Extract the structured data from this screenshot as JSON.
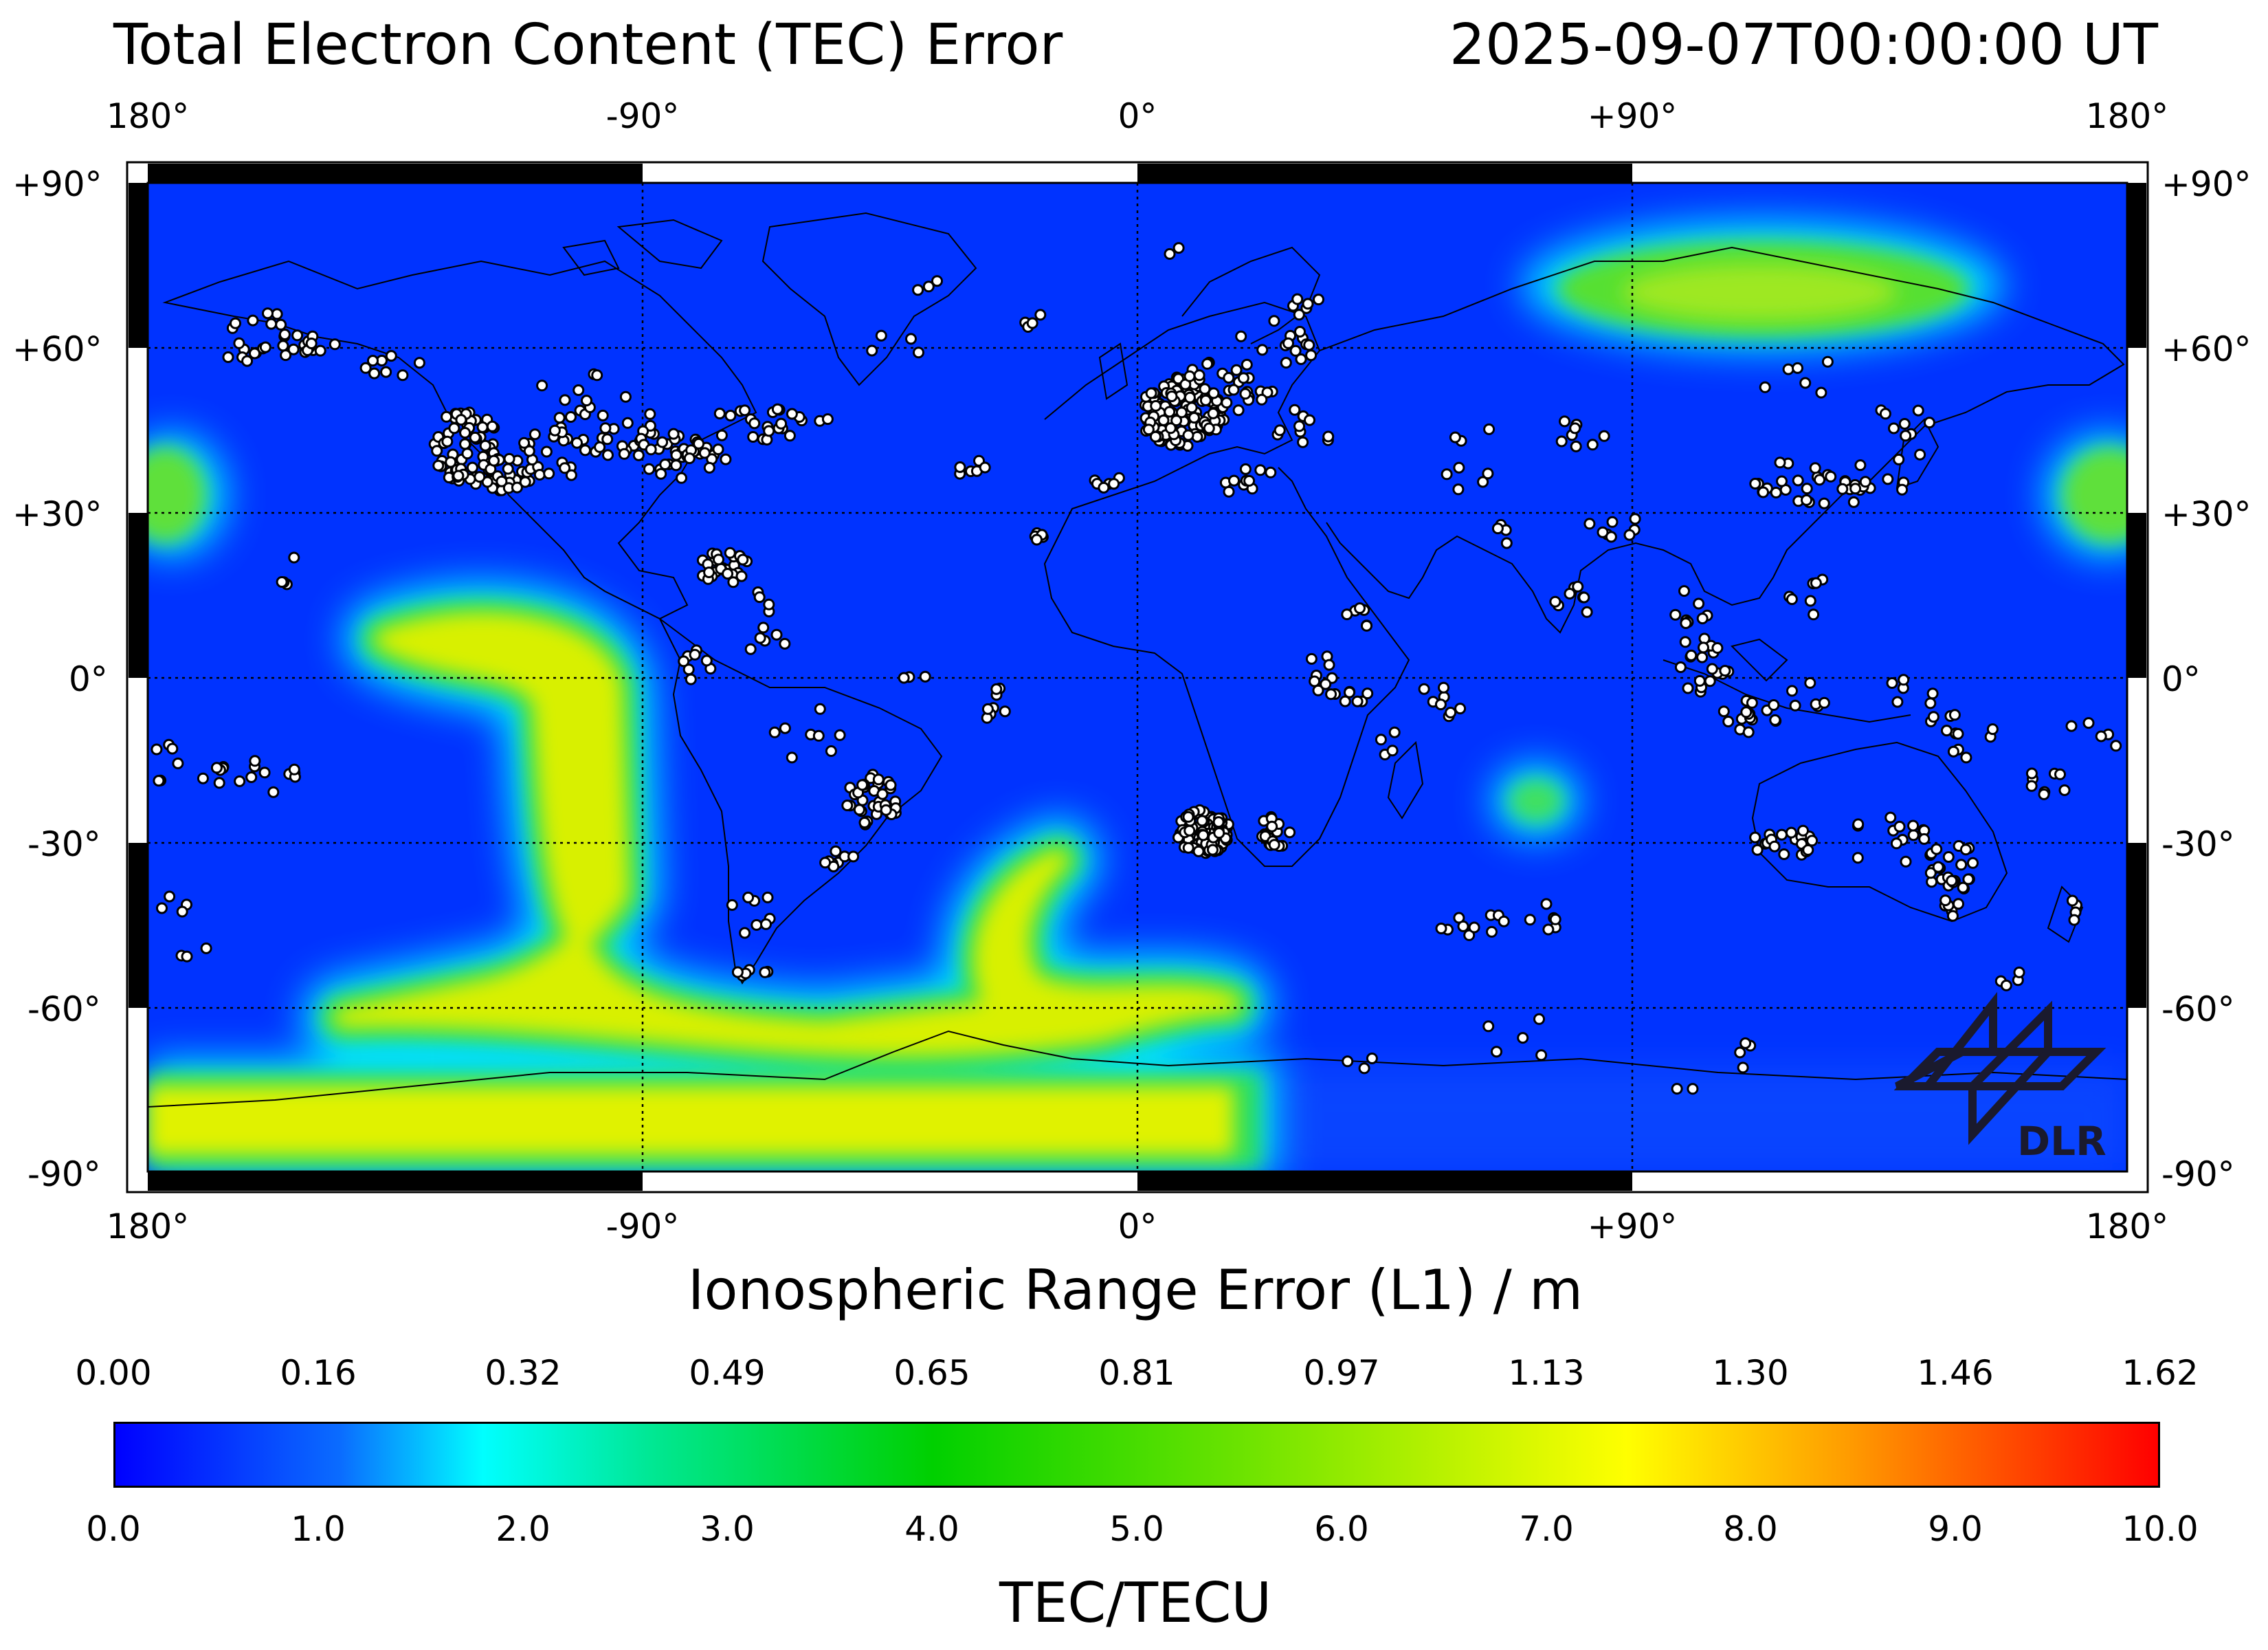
{
  "header": {
    "title": "Total Electron Content (TEC) Error",
    "timestamp": "2025-09-07T00:00:00 UT"
  },
  "map": {
    "lon_ticks": [
      "180°",
      "-90°",
      "0°",
      "+90°",
      "180°"
    ],
    "lat_ticks": [
      "+90°",
      "+60°",
      "+30°",
      "0°",
      "-30°",
      "-60°",
      "-90°"
    ],
    "background_color": "#0033ff",
    "logo_text": "DLR",
    "stations_color": "#ffffff"
  },
  "colorbar": {
    "range_error_label": "Ionospheric Range Error (L1) / m",
    "range_error_ticks": [
      "0.00",
      "0.16",
      "0.32",
      "0.49",
      "0.65",
      "0.81",
      "0.97",
      "1.13",
      "1.30",
      "1.46",
      "1.62"
    ],
    "tec_ticks": [
      "0.0",
      "1.0",
      "2.0",
      "3.0",
      "4.0",
      "5.0",
      "6.0",
      "7.0",
      "8.0",
      "9.0",
      "10.0"
    ],
    "tec_label": "TEC/TECU",
    "colors": [
      "#0000ff",
      "#00ffff",
      "#00d000",
      "#ffff00",
      "#ff0000"
    ]
  }
}
